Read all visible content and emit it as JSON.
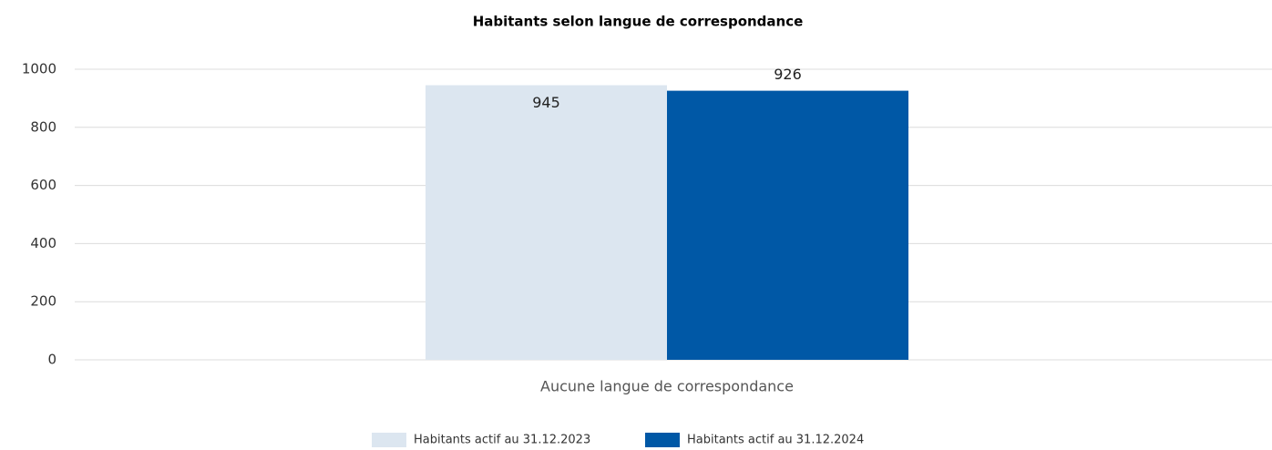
{
  "chart_data": {
    "type": "bar",
    "title": "Habitants selon langue de correspondance",
    "categories": [
      "Aucune langue de correspondance"
    ],
    "series": [
      {
        "name": "Habitants actif au 31.12.2023",
        "color": "#dce6f0",
        "values": [
          945
        ]
      },
      {
        "name": "Habitants actif au 31.12.2024",
        "color": "#0058a6",
        "values": [
          926
        ]
      }
    ],
    "ylim": [
      0,
      1000
    ],
    "yticks": [
      0,
      200,
      400,
      600,
      800,
      1000
    ],
    "grid": true,
    "legend": "bottom"
  }
}
